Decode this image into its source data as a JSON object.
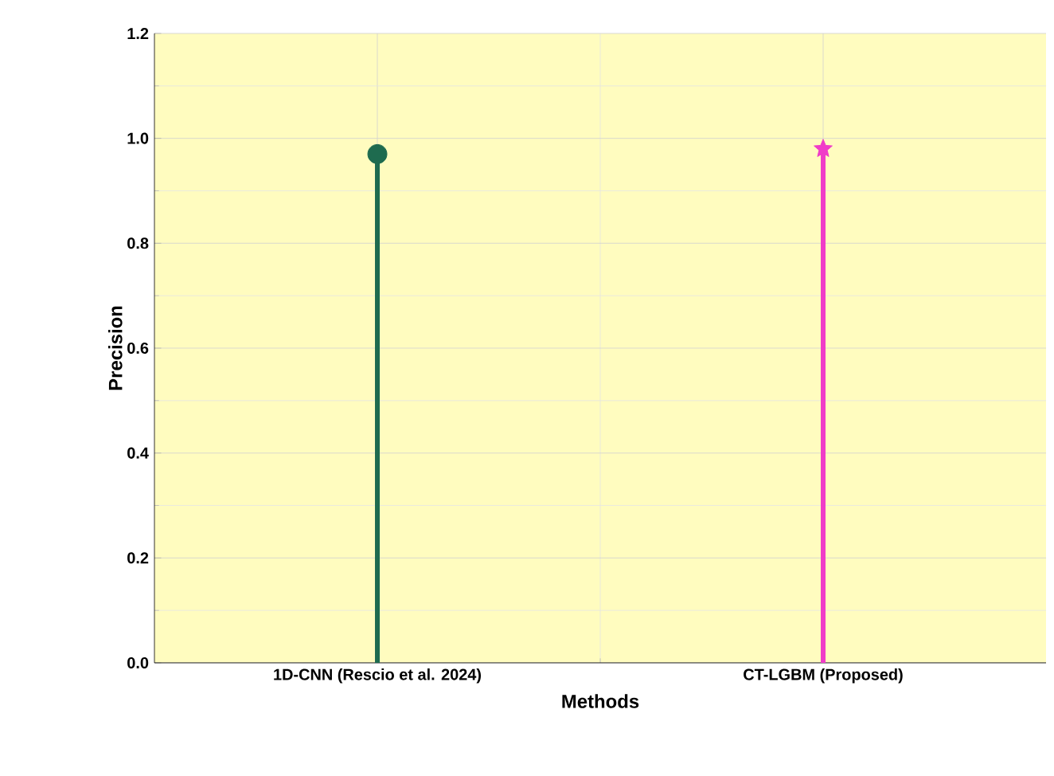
{
  "chart_data": {
    "type": "lollipop",
    "xlabel": "Methods",
    "ylabel": "Precision",
    "categories": [
      "1D-CNN (Rescio et al. 2024)",
      "CT-LGBM (Proposed)"
    ],
    "series": [
      {
        "color": "#1e6b4f",
        "marker": "circle",
        "values": [
          0.97,
          null
        ]
      },
      {
        "color": "#f03cc8",
        "marker": "star",
        "values": [
          null,
          0.98
        ]
      }
    ],
    "ylim": [
      0,
      1.2
    ],
    "yticks": [
      {
        "value": 0,
        "label": "0.0"
      },
      {
        "value": 0.2,
        "label": "0.2"
      },
      {
        "value": 0.4,
        "label": "0.4"
      },
      {
        "value": 0.6,
        "label": "0.6"
      },
      {
        "value": 0.8,
        "label": "0.8"
      },
      {
        "value": 1.0,
        "label": "1.0"
      },
      {
        "value": 1.2,
        "label": "1.2"
      }
    ],
    "grid": true
  }
}
